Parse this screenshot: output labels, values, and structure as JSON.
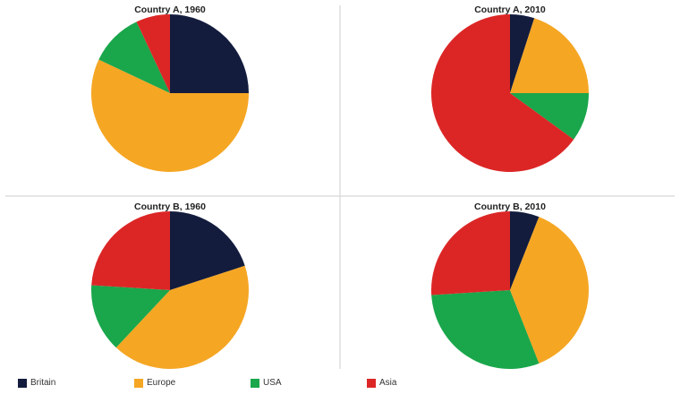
{
  "chart_data": [
    {
      "type": "pie",
      "title": "Country A, 1960",
      "categories": [
        "Britain",
        "Europe",
        "USA",
        "Asia"
      ],
      "values": [
        25,
        57,
        11,
        7
      ]
    },
    {
      "type": "pie",
      "title": "Country A, 2010",
      "categories": [
        "Britain",
        "Europe",
        "USA",
        "Asia"
      ],
      "values": [
        5,
        20,
        10,
        65
      ]
    },
    {
      "type": "pie",
      "title": "Country B, 1960",
      "categories": [
        "Britain",
        "Europe",
        "USA",
        "Asia"
      ],
      "values": [
        20,
        42,
        14,
        24
      ]
    },
    {
      "type": "pie",
      "title": "Country B, 2010",
      "categories": [
        "Britain",
        "Europe",
        "USA",
        "Asia"
      ],
      "values": [
        6,
        38,
        30,
        26
      ]
    }
  ],
  "legend": {
    "placement": "bottom",
    "items": [
      {
        "label": "Britain",
        "color": "#131c3d"
      },
      {
        "label": "Europe",
        "color": "#f5a623"
      },
      {
        "label": "USA",
        "color": "#1aa64b"
      },
      {
        "label": "Asia",
        "color": "#dc2626"
      }
    ]
  }
}
